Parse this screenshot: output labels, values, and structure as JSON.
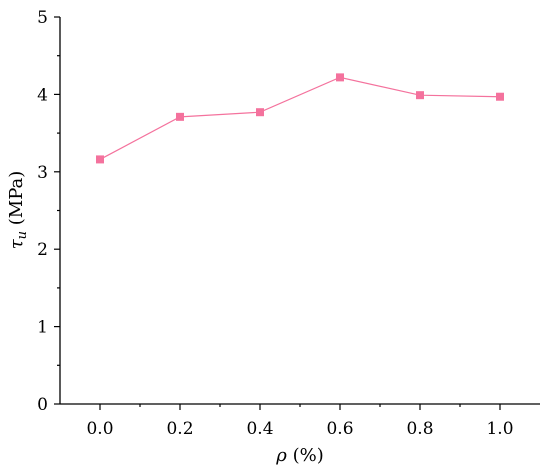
{
  "chart_data": {
    "type": "line",
    "title": "",
    "xlabel": {
      "symbol": "ρ",
      "unit": "(%)"
    },
    "ylabel": {
      "symbol": "τ",
      "subscript": "u",
      "unit": "(MPa)"
    },
    "x": [
      0.0,
      0.2,
      0.4,
      0.6,
      0.8,
      1.0
    ],
    "x_ticks": [
      0.0,
      0.2,
      0.4,
      0.6,
      0.8,
      1.0
    ],
    "x_tick_labels": [
      "0.0",
      "0.2",
      "0.4",
      "0.6",
      "0.8",
      "1.0"
    ],
    "xlim": [
      -0.1,
      1.1
    ],
    "y_ticks": [
      0,
      1,
      2,
      3,
      4,
      5
    ],
    "y_tick_labels": [
      "0",
      "1",
      "2",
      "3",
      "4",
      "5"
    ],
    "ylim": [
      0,
      5
    ],
    "grid": false,
    "legend": "none",
    "series": [
      {
        "values": [
          3.16,
          3.71,
          3.77,
          4.22,
          3.99,
          3.97
        ],
        "color": "#f4729d",
        "marker": "square"
      }
    ]
  }
}
